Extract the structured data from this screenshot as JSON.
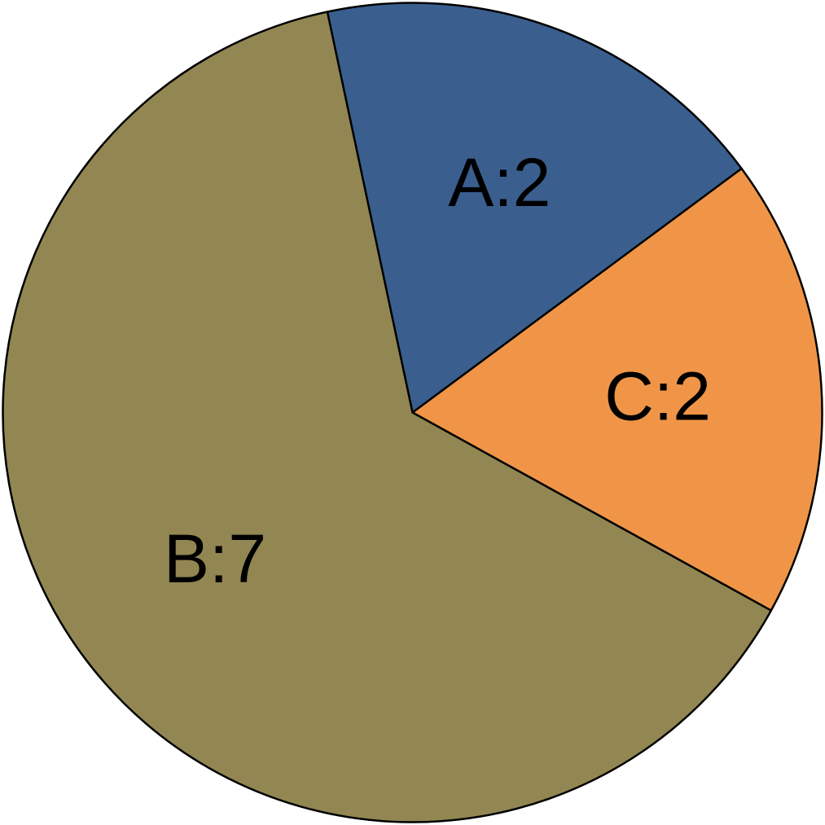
{
  "chart_data": {
    "type": "pie",
    "categories": [
      "A",
      "C",
      "B"
    ],
    "values": [
      2,
      2,
      7
    ],
    "labels": [
      "A:2",
      "C:2",
      "B:7"
    ],
    "colors": [
      "#3a5f8f",
      "#f09548",
      "#928752"
    ],
    "start_angle_deg": -102,
    "direction": "clockwise",
    "legend": "none",
    "title": ""
  }
}
